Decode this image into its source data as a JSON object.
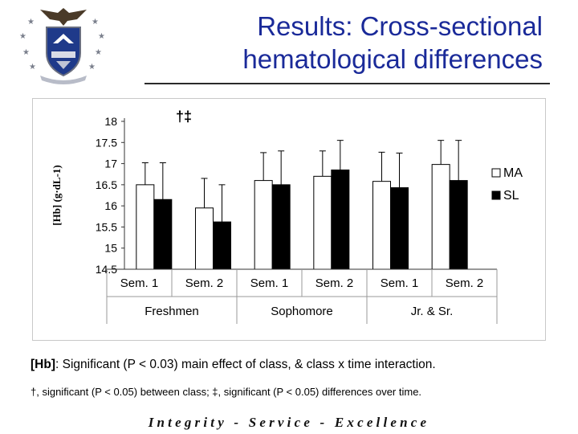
{
  "slide": {
    "title_line1": "Results: Cross-sectional",
    "title_line2": "hematological differences",
    "footer": "Integrity - Service - Excellence",
    "note1_bold": "[Hb]",
    "note1_rest": ": Significant (P < 0.03) main effect of class, & class x time interaction.",
    "note2": "†, significant (P < 0.05) between class; ‡, significant (P < 0.05) differences over time."
  },
  "colors": {
    "title": "#1a2a99",
    "ma_fill": "#ffffff",
    "sl_fill": "#000000",
    "axis": "#333333"
  },
  "chart_data": {
    "type": "bar",
    "title": "",
    "ylabel": "[Hb] (g·dL-1)",
    "ylim": [
      14.5,
      18
    ],
    "yticks": [
      "18",
      "17.5",
      "17",
      "16.5",
      "16",
      "15.5",
      "15",
      "14.5"
    ],
    "categories": [
      "Sem. 1",
      "Sem. 2",
      "Sem. 1",
      "Sem. 2",
      "Sem. 1",
      "Sem. 2"
    ],
    "groups": [
      "Freshmen",
      "Sophomore",
      "Jr. & Sr."
    ],
    "series": [
      {
        "name": "MA",
        "values": [
          16.5,
          15.95,
          16.6,
          16.7,
          16.58,
          16.98
        ],
        "error_upper": [
          17.02,
          16.65,
          17.26,
          17.3,
          17.27,
          17.55
        ]
      },
      {
        "name": "SL",
        "values": [
          16.15,
          15.62,
          16.5,
          16.85,
          16.43,
          16.6
        ],
        "error_upper": [
          17.02,
          16.5,
          17.3,
          17.55,
          17.25,
          17.55
        ]
      }
    ],
    "annotation": "†‡",
    "legend": "right"
  }
}
